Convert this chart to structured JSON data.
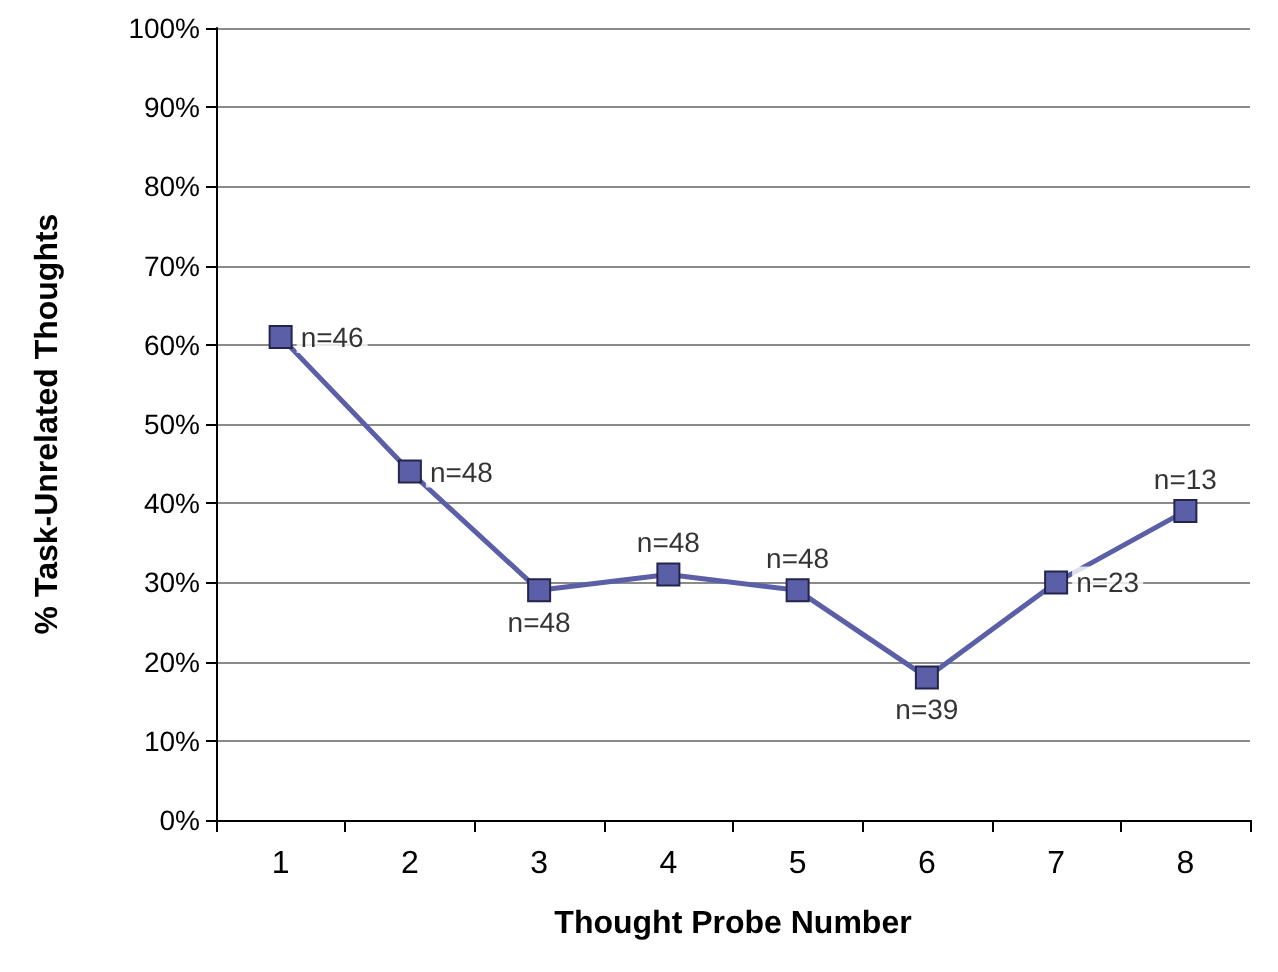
{
  "chart_data": {
    "type": "line",
    "xlabel": "Thought Probe Number",
    "ylabel": "% Task-Unrelated Thoughts",
    "categories": [
      "1",
      "2",
      "3",
      "4",
      "5",
      "6",
      "7",
      "8"
    ],
    "series": [
      {
        "color": "#5a5fa8",
        "values": [
          61,
          44,
          29,
          31,
          29,
          18,
          30,
          39
        ]
      }
    ],
    "ylim": [
      0,
      100
    ],
    "yticks": [
      {
        "value": 0,
        "label": "0%"
      },
      {
        "value": 10,
        "label": "10%"
      },
      {
        "value": 20,
        "label": "20%"
      },
      {
        "value": 30,
        "label": "30%"
      },
      {
        "value": 40,
        "label": "40%"
      },
      {
        "value": 50,
        "label": "50%"
      },
      {
        "value": 60,
        "label": "60%"
      },
      {
        "value": 70,
        "label": "70%"
      },
      {
        "value": 80,
        "label": "80%"
      },
      {
        "value": 90,
        "label": "90%"
      },
      {
        "value": 100,
        "label": "100%"
      }
    ],
    "grid": "y",
    "marker": "square",
    "line_style": "solid",
    "annotations": [
      {
        "text": "n=46",
        "x": "1",
        "y": 61
      },
      {
        "text": "n=48",
        "x": "2",
        "y": 44
      },
      {
        "text": "n=48",
        "x": "3",
        "y": 29
      },
      {
        "text": "n=48",
        "x": "4",
        "y": 31
      },
      {
        "text": "n=48",
        "x": "5",
        "y": 29
      },
      {
        "text": "n=39",
        "x": "6",
        "y": 18
      },
      {
        "text": "n=23",
        "x": "7",
        "y": 30
      },
      {
        "text": "n=13",
        "x": "8",
        "y": 39
      }
    ]
  }
}
